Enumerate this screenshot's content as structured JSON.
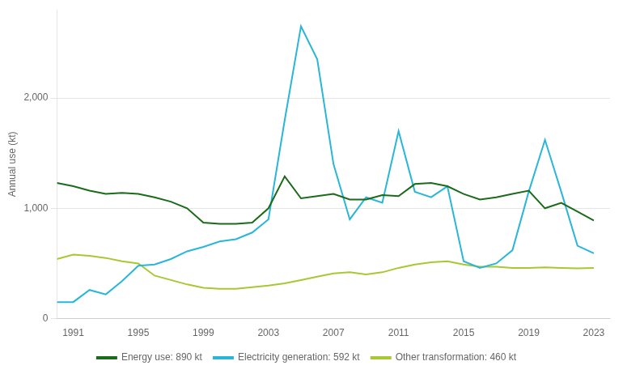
{
  "chart_data": {
    "type": "line",
    "y_label": "Annual use (kt)",
    "x": [
      1990,
      1991,
      1992,
      1993,
      1994,
      1995,
      1996,
      1997,
      1998,
      1999,
      2000,
      2001,
      2002,
      2003,
      2004,
      2005,
      2006,
      2007,
      2008,
      2009,
      2010,
      2011,
      2012,
      2013,
      2014,
      2015,
      2016,
      2017,
      2018,
      2019,
      2020,
      2021,
      2022,
      2023
    ],
    "series": [
      {
        "name": "Energy use: 890 kt",
        "color": "#1a6b1a",
        "values": [
          1230,
          1200,
          1160,
          1130,
          1140,
          1130,
          1100,
          1060,
          1000,
          870,
          860,
          860,
          870,
          1000,
          1290,
          1090,
          1110,
          1130,
          1080,
          1080,
          1120,
          1110,
          1220,
          1230,
          1200,
          1130,
          1080,
          1100,
          1130,
          1160,
          1000,
          1050,
          970,
          890
        ]
      },
      {
        "name": "Electricity generation: 592 kt",
        "color": "#29b6d8",
        "values": [
          150,
          150,
          260,
          220,
          340,
          480,
          490,
          540,
          610,
          650,
          700,
          720,
          780,
          900,
          1800,
          2650,
          2350,
          1400,
          900,
          1100,
          1050,
          1700,
          1150,
          1100,
          1200,
          520,
          460,
          500,
          620,
          1150,
          1620,
          1150,
          660,
          592
        ]
      },
      {
        "name": "Other transformation: 460 kt",
        "color": "#a8c832",
        "values": [
          540,
          580,
          570,
          550,
          520,
          500,
          390,
          350,
          310,
          280,
          270,
          270,
          285,
          300,
          320,
          350,
          380,
          410,
          420,
          400,
          420,
          460,
          490,
          510,
          520,
          490,
          470,
          470,
          460,
          460,
          465,
          460,
          455,
          460
        ]
      }
    ],
    "xlim": [
      1990,
      2024
    ],
    "xticks": [
      1991,
      1995,
      1999,
      2003,
      2007,
      2011,
      2015,
      2019,
      2023
    ],
    "ylim": [
      0,
      2800
    ],
    "yticks": [
      0,
      {
        "value": 1000,
        "label": "1,000"
      },
      {
        "value": 2000,
        "label": "2,000"
      }
    ],
    "grid": "y",
    "legend": "bottom"
  }
}
